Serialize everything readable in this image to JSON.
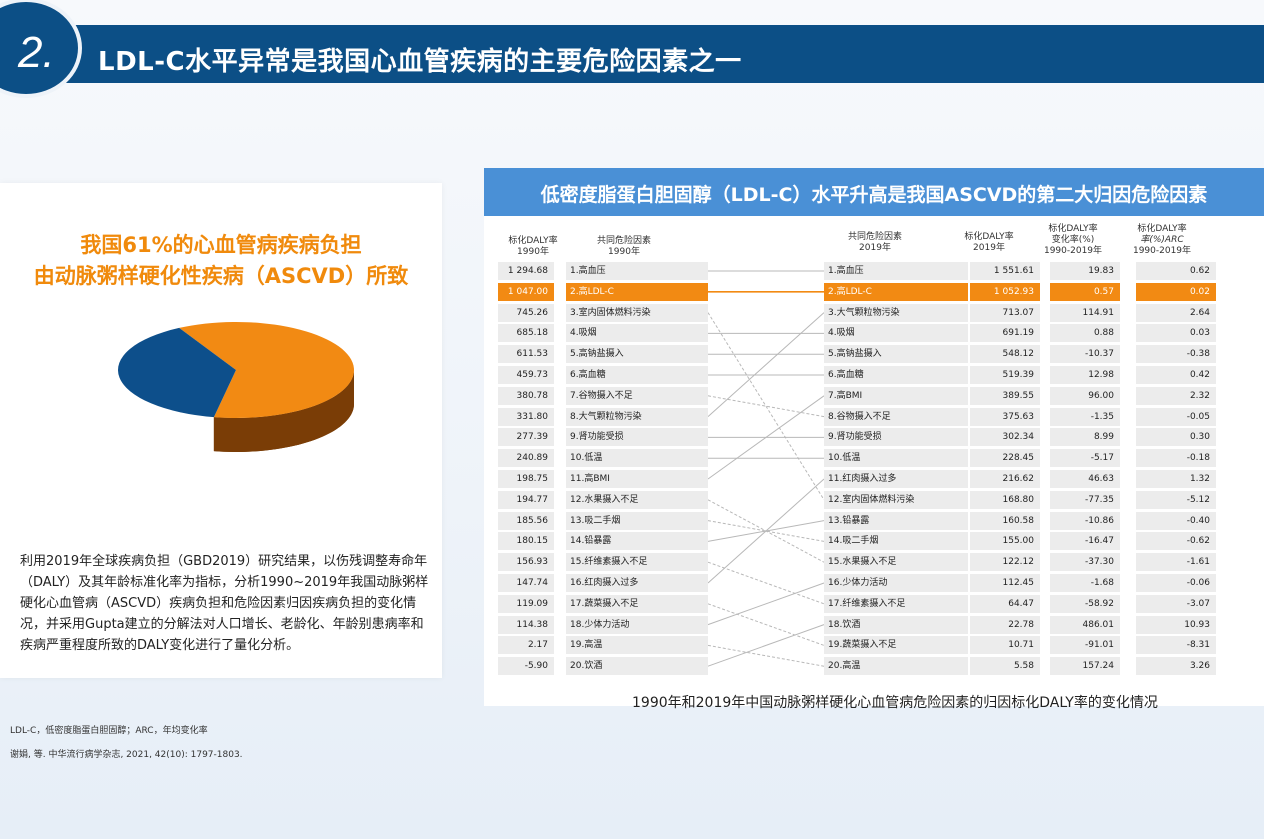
{
  "header": {
    "number": "2.",
    "title": "LDL-C水平异常是我国心血管疾病的主要危险因素之一"
  },
  "left": {
    "heading_line1": "我国61%的心血管病疾病负担",
    "heading_line2": "由动脉粥样硬化性疾病（ASCVD）所致",
    "paragraph": "利用2019年全球疾病负担（GBD2019）研究结果，以伤残调整寿命年（DALY）及其年龄标准化率为指标，分析1990~2019年我国动脉粥样硬化心血管病（ASCVD）疾病负担和危险因素归因疾病负担的变化情况，并采用Gupta建立的分解法对人口增长、老龄化、年龄别患病率和疾病严重程度所致的DALY变化进行了量化分析。",
    "pie": {
      "orange_share": 0.61,
      "blue_share": 0.39,
      "colors": {
        "orange": "#f28a13",
        "orange_side": "#7a3d06",
        "blue": "#0d4f8b",
        "blue_side": "#073056"
      }
    }
  },
  "right": {
    "title": "低密度脂蛋白胆固醇（LDL-C）水平升高是我国ASCVD的第二大归因危险因素",
    "head_daly1990_l1": "标化DALY率",
    "head_daly1990_l2": "1990年",
    "head_risk1990_l1": "共同危险因素",
    "head_risk1990_l2": "1990年",
    "head_risk2019_l1": "共同危险因素",
    "head_risk2019_l2": "2019年",
    "head_daly2019_l1": "标化DALY率",
    "head_daly2019_l2": "2019年",
    "head_change_l1": "标化DALY率",
    "head_change_l2": "变化率(%)",
    "head_change_l3": "1990-2019年",
    "head_arc_l1": "标化DALY率",
    "head_arc_l2": "率(%)ARC",
    "head_arc_l3": "1990-2019年",
    "caption": "1990年和2019年中国动脉粥样硬化心血管病危险因素的归因标化DALY率的变化情况",
    "highlight_color": "#f28a13",
    "rows1990": [
      {
        "val": "1 294.68",
        "label": "1.高血压"
      },
      {
        "val": "1 047.00",
        "label": "2.高LDL-C"
      },
      {
        "val": "745.26",
        "label": "3.室内固体燃料污染"
      },
      {
        "val": "685.18",
        "label": "4.吸烟"
      },
      {
        "val": "611.53",
        "label": "5.高钠盐摄入"
      },
      {
        "val": "459.73",
        "label": "6.高血糖"
      },
      {
        "val": "380.78",
        "label": "7.谷物摄入不足"
      },
      {
        "val": "331.80",
        "label": "8.大气颗粒物污染"
      },
      {
        "val": "277.39",
        "label": "9.肾功能受损"
      },
      {
        "val": "240.89",
        "label": "10.低温"
      },
      {
        "val": "198.75",
        "label": "11.高BMI"
      },
      {
        "val": "194.77",
        "label": "12.水果摄入不足"
      },
      {
        "val": "185.56",
        "label": "13.吸二手烟"
      },
      {
        "val": "180.15",
        "label": "14.铅暴露"
      },
      {
        "val": "156.93",
        "label": "15.纤维素摄入不足"
      },
      {
        "val": "147.74",
        "label": "16.红肉摄入过多"
      },
      {
        "val": "119.09",
        "label": "17.蔬菜摄入不足"
      },
      {
        "val": "114.38",
        "label": "18.少体力活动"
      },
      {
        "val": "2.17",
        "label": "19.高温"
      },
      {
        "val": "-5.90",
        "label": "20.饮酒"
      }
    ],
    "rows2019": [
      {
        "label": "1.高血压",
        "val": "1 551.61",
        "change": "19.83",
        "arc": "0.62"
      },
      {
        "label": "2.高LDL-C",
        "val": "1 052.93",
        "change": "0.57",
        "arc": "0.02"
      },
      {
        "label": "3.大气颗粒物污染",
        "val": "713.07",
        "change": "114.91",
        "arc": "2.64"
      },
      {
        "label": "4.吸烟",
        "val": "691.19",
        "change": "0.88",
        "arc": "0.03"
      },
      {
        "label": "5.高钠盐摄入",
        "val": "548.12",
        "change": "-10.37",
        "arc": "-0.38"
      },
      {
        "label": "6.高血糖",
        "val": "519.39",
        "change": "12.98",
        "arc": "0.42"
      },
      {
        "label": "7.高BMI",
        "val": "389.55",
        "change": "96.00",
        "arc": "2.32"
      },
      {
        "label": "8.谷物摄入不足",
        "val": "375.63",
        "change": "-1.35",
        "arc": "-0.05"
      },
      {
        "label": "9.肾功能受损",
        "val": "302.34",
        "change": "8.99",
        "arc": "0.30"
      },
      {
        "label": "10.低温",
        "val": "228.45",
        "change": "-5.17",
        "arc": "-0.18"
      },
      {
        "label": "11.红肉摄入过多",
        "val": "216.62",
        "change": "46.63",
        "arc": "1.32"
      },
      {
        "label": "12.室内固体燃料污染",
        "val": "168.80",
        "change": "-77.35",
        "arc": "-5.12"
      },
      {
        "label": "13.铅暴露",
        "val": "160.58",
        "change": "-10.86",
        "arc": "-0.40"
      },
      {
        "label": "14.吸二手烟",
        "val": "155.00",
        "change": "-16.47",
        "arc": "-0.62"
      },
      {
        "label": "15.水果摄入不足",
        "val": "122.12",
        "change": "-37.30",
        "arc": "-1.61"
      },
      {
        "label": "16.少体力活动",
        "val": "112.45",
        "change": "-1.68",
        "arc": "-0.06"
      },
      {
        "label": "17.纤维素摄入不足",
        "val": "64.47",
        "change": "-58.92",
        "arc": "-3.07"
      },
      {
        "label": "18.饮酒",
        "val": "22.78",
        "change": "486.01",
        "arc": "10.93"
      },
      {
        "label": "19.蔬菜摄入不足",
        "val": "10.71",
        "change": "-91.01",
        "arc": "-8.31"
      },
      {
        "label": "20.高温",
        "val": "5.58",
        "change": "157.24",
        "arc": "3.26"
      }
    ],
    "rank_map": [
      1,
      2,
      12,
      4,
      5,
      6,
      8,
      3,
      9,
      10,
      7,
      15,
      14,
      13,
      17,
      11,
      19,
      16,
      20,
      18
    ]
  },
  "footnotes": {
    "abbrev": "LDL-C，低密度脂蛋白胆固醇；ARC，年均变化率",
    "reference": "谢娟, 等. 中华流行病学杂志, 2021, 42(10): 1797-1803."
  }
}
